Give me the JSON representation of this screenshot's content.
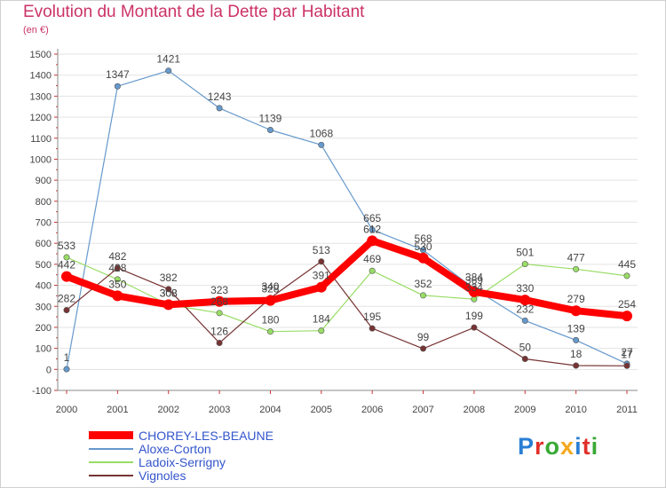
{
  "title": "Evolution du Montant de la Dette par Habitant",
  "subtitle": "(en €)",
  "logo": {
    "text": "Proxiti",
    "colors": [
      "#2b7fd4",
      "#e0302a",
      "#39a935",
      "#f4a81d",
      "#2b7fd4",
      "#e0302a",
      "#39a935"
    ]
  },
  "chart_data": {
    "type": "line",
    "x": [
      2000,
      2001,
      2002,
      2003,
      2004,
      2005,
      2006,
      2007,
      2008,
      2009,
      2010,
      2011
    ],
    "ylim": [
      -100,
      1500
    ],
    "yticks": [
      -100,
      0,
      100,
      200,
      300,
      400,
      500,
      600,
      700,
      800,
      900,
      1000,
      1100,
      1200,
      1300,
      1400,
      1500
    ],
    "grid": "horizontal",
    "legend": "bottom-left",
    "series": [
      {
        "name": "CHOREY-LES-BEAUNE",
        "color": "#ff0000",
        "width": 8,
        "values": [
          442,
          350,
          308,
          323,
          328,
          391,
          612,
          530,
          369,
          330,
          279,
          254
        ]
      },
      {
        "name": "Aloxe-Corton",
        "color": "#6699cc",
        "width": 1.2,
        "values": [
          1,
          1347,
          1421,
          1243,
          1139,
          1068,
          665,
          568,
          384,
          232,
          139,
          27
        ]
      },
      {
        "name": "Ladoix-Serrigny",
        "color": "#99dd66",
        "width": 1.2,
        "values": [
          533,
          428,
          308,
          268,
          180,
          184,
          469,
          352,
          334,
          501,
          477,
          445
        ]
      },
      {
        "name": "Vignoles",
        "color": "#773333",
        "width": 1.2,
        "values": [
          282,
          482,
          382,
          126,
          340,
          513,
          195,
          99,
          199,
          50,
          18,
          17
        ]
      }
    ]
  }
}
